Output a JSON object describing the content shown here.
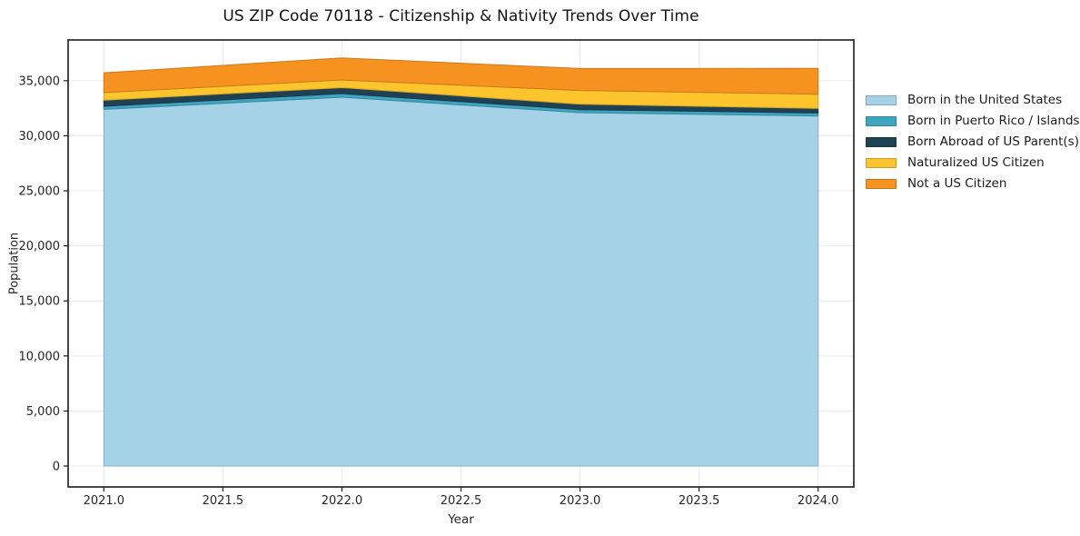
{
  "chart_data": {
    "type": "area",
    "stacked": true,
    "title": "US ZIP Code 70118 - Citizenship & Nativity Trends Over Time",
    "xlabel": "Year",
    "ylabel": "Population",
    "x": [
      2021,
      2022,
      2023,
      2024
    ],
    "series": [
      {
        "name": "Born in the United States",
        "color": "#a5d2e6",
        "values": [
          32400,
          33500,
          32100,
          31800
        ]
      },
      {
        "name": "Born in Puerto Rico / Islands",
        "color": "#3fa5c0",
        "values": [
          280,
          330,
          270,
          270
        ]
      },
      {
        "name": "Born Abroad of US Parent(s)",
        "color": "#1e4254",
        "values": [
          550,
          540,
          500,
          410
        ]
      },
      {
        "name": "Naturalized US Citizen",
        "color": "#fcc42d",
        "values": [
          690,
          700,
          1240,
          1300
        ]
      },
      {
        "name": "Not a US Citizen",
        "color": "#f6921f",
        "values": [
          1800,
          2000,
          2000,
          2340
        ]
      }
    ],
    "xticks": {
      "values": [
        2021.0,
        2021.5,
        2022.0,
        2022.5,
        2023.0,
        2023.5,
        2024.0
      ],
      "labels": [
        "2021.0",
        "2021.5",
        "2022.0",
        "2022.5",
        "2023.0",
        "2023.5",
        "2024.0"
      ]
    },
    "yticks": {
      "values": [
        0,
        5000,
        10000,
        15000,
        20000,
        25000,
        30000,
        35000
      ],
      "labels": [
        "0",
        "5,000",
        "10,000",
        "15,000",
        "20,000",
        "25,000",
        "30,000",
        "35,000"
      ]
    },
    "xlim": [
      2020.85,
      2024.15
    ],
    "ylim": [
      -1900,
      38700
    ],
    "grid": true,
    "grid_color": "#ebebeb",
    "frame_color": "#1a1a1a",
    "tick_text_color": "#262626",
    "legend_position": "right"
  }
}
